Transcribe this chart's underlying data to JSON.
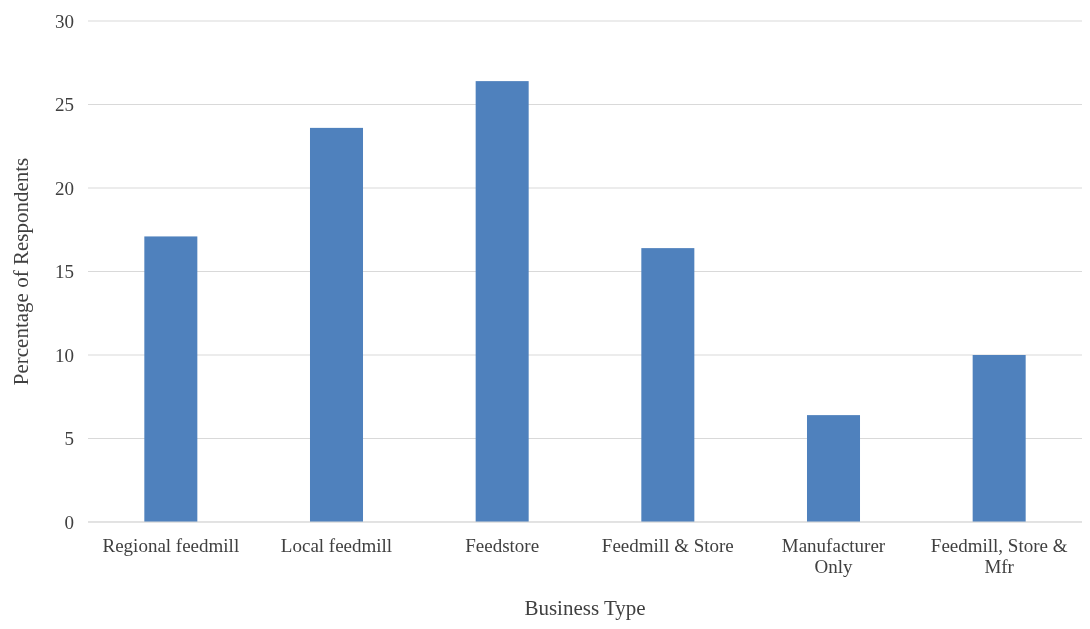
{
  "chart_data": {
    "type": "bar",
    "xlabel": "Business Type",
    "ylabel": "Percentage of Respondents",
    "categories": [
      "Regional feedmill",
      "Local feedmill",
      "Feedstore",
      "Feedmill & Store",
      "Manufacturer Only",
      "Feedmill, Store & Mfr"
    ],
    "values": [
      17.1,
      23.6,
      26.4,
      16.4,
      6.4,
      10.0
    ],
    "color": "#4f81bd",
    "ylim": [
      0,
      30
    ],
    "yticks": [
      0,
      5,
      10,
      15,
      20,
      25,
      30
    ],
    "grid": "y"
  }
}
